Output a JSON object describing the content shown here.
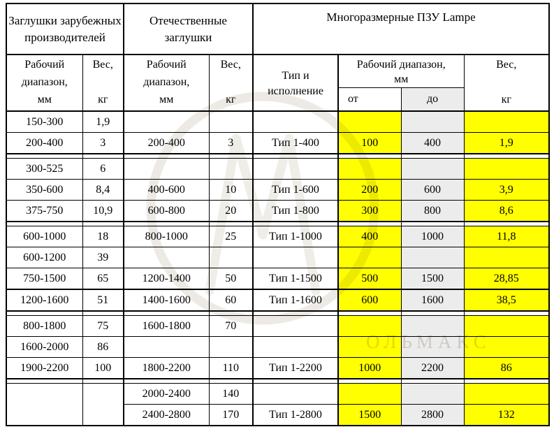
{
  "page": {
    "background": "#ffffff"
  },
  "colors": {
    "highlight_yellow": "#ffff00",
    "cell_gray": "#ececec",
    "border_black": "#000000"
  },
  "watermark": {
    "text": "ОЛЬМАКС"
  },
  "table": {
    "top_headers": {
      "foreign": "Заглушки зарубежных производителей",
      "domestic": "Отечественные заглушки",
      "lampe": "Многоразмерные  ПЗУ Lampe"
    },
    "sub_headers": {
      "range_word1": "Рабочий",
      "range_word2": "диапазон,",
      "range_unit": "мм",
      "weight_word": "Вес,",
      "weight_unit": "кг",
      "type": "Тип и исполнение",
      "lampe_range": "Рабочий диапазон,",
      "lampe_range_unit": "мм",
      "from": "от",
      "to": "до"
    },
    "column_keys": [
      "foreign-range",
      "foreign-weight",
      "domestic-range",
      "domestic-weight",
      "type-execution",
      "range-from",
      "range-to",
      "weight"
    ],
    "rows": [
      [
        "150-300",
        "1,9",
        "",
        "",
        "",
        "",
        "",
        ""
      ],
      [
        "200-400",
        "3",
        "200-400",
        "3",
        "Тип 1-400",
        "100",
        "400",
        "1,9"
      ],
      [
        "300-525",
        "6",
        "",
        "",
        "",
        "",
        "",
        ""
      ],
      [
        "350-600",
        "8,4",
        "400-600",
        "10",
        "Тип 1-600",
        "200",
        "600",
        "3,9"
      ],
      [
        "375-750",
        "10,9",
        "600-800",
        "20",
        "Тип 1-800",
        "300",
        "800",
        "8,6"
      ],
      [
        "600-1000",
        "18",
        "800-1000",
        "25",
        "Тип 1-1000",
        "400",
        "1000",
        "11,8"
      ],
      [
        "600-1200",
        "39",
        "",
        "",
        "",
        "",
        "",
        ""
      ],
      [
        "750-1500",
        "65",
        "1200-1400",
        "50",
        "Тип 1-1500",
        "500",
        "1500",
        "28,85"
      ],
      [
        "1200-1600",
        "51",
        "1400-1600",
        "60",
        "Тип 1-1600",
        "600",
        "1600",
        "38,5"
      ],
      [
        "800-1800",
        "75",
        "1600-1800",
        "70",
        "",
        "",
        "",
        ""
      ],
      [
        "1600-2000",
        "86",
        "",
        "",
        "",
        "",
        "",
        ""
      ],
      [
        "1900-2200",
        "100",
        "1800-2200",
        "110",
        "Тип 1-2200",
        "1000",
        "2200",
        "86"
      ],
      [
        "",
        "",
        "2000-2400",
        "140",
        "",
        "",
        "",
        ""
      ],
      [
        "",
        "",
        "2400-2800",
        "170",
        "Тип 1-2800",
        "1500",
        "2800",
        "132"
      ]
    ],
    "row_groups": [
      {
        "row_indices": [
          0,
          1
        ],
        "separator_after": "double"
      },
      {
        "row_indices": [
          2,
          3,
          4
        ],
        "separator_after": "double"
      },
      {
        "row_indices": [
          5,
          6,
          7
        ],
        "separator_after": "thick"
      },
      {
        "row_indices": [
          8
        ],
        "separator_after": "double"
      },
      {
        "row_indices": [
          9,
          10,
          11
        ],
        "separator_after": "double"
      },
      {
        "row_indices": [
          12,
          13
        ],
        "separator_after": "none",
        "merge_left_columns": true
      }
    ]
  }
}
